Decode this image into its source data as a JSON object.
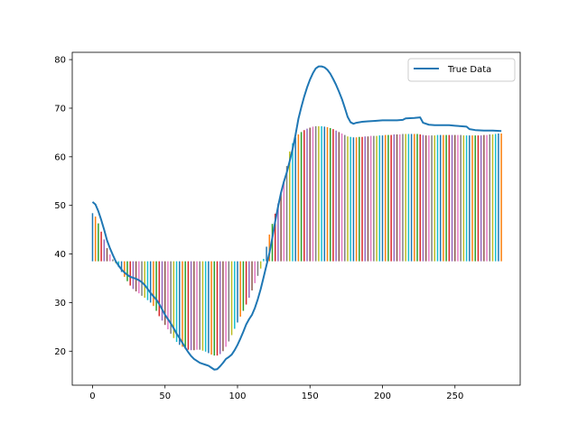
{
  "chart_data": {
    "type": "line",
    "title": "",
    "xlabel": "",
    "ylabel": "",
    "xlim": [
      -14,
      295
    ],
    "ylim": [
      13,
      81.5
    ],
    "xticks": [
      0,
      50,
      100,
      150,
      200,
      250
    ],
    "yticks": [
      20,
      30,
      40,
      50,
      60,
      70,
      80
    ],
    "grid": false,
    "legend": {
      "placement": "top-right",
      "label": "True Data"
    },
    "series": [
      {
        "name": "True Data",
        "color": "#1f77b4",
        "points": [
          [
            0,
            50.7
          ],
          [
            2,
            50.2
          ],
          [
            4,
            48.8
          ],
          [
            6,
            47.0
          ],
          [
            8,
            45.0
          ],
          [
            10,
            42.8
          ],
          [
            12,
            41.2
          ],
          [
            14,
            39.8
          ],
          [
            16,
            38.5
          ],
          [
            18,
            37.6
          ],
          [
            20,
            36.8
          ],
          [
            22,
            36.2
          ],
          [
            24,
            35.7
          ],
          [
            26,
            35.3
          ],
          [
            28,
            35.1
          ],
          [
            30,
            34.9
          ],
          [
            32,
            34.6
          ],
          [
            34,
            34.2
          ],
          [
            36,
            33.6
          ],
          [
            38,
            32.8
          ],
          [
            40,
            32.0
          ],
          [
            42,
            31.3
          ],
          [
            44,
            30.6
          ],
          [
            46,
            29.7
          ],
          [
            48,
            28.6
          ],
          [
            50,
            27.5
          ],
          [
            52,
            26.6
          ],
          [
            54,
            25.7
          ],
          [
            56,
            24.7
          ],
          [
            58,
            23.6
          ],
          [
            60,
            22.7
          ],
          [
            62,
            21.7
          ],
          [
            64,
            20.7
          ],
          [
            66,
            19.8
          ],
          [
            68,
            19.0
          ],
          [
            70,
            18.4
          ],
          [
            72,
            18.0
          ],
          [
            74,
            17.6
          ],
          [
            76,
            17.4
          ],
          [
            78,
            17.2
          ],
          [
            80,
            17.0
          ],
          [
            82,
            16.6
          ],
          [
            84,
            16.2
          ],
          [
            86,
            16.3
          ],
          [
            88,
            16.9
          ],
          [
            90,
            17.6
          ],
          [
            92,
            18.4
          ],
          [
            94,
            18.8
          ],
          [
            96,
            19.3
          ],
          [
            98,
            20.2
          ],
          [
            100,
            21.3
          ],
          [
            102,
            22.6
          ],
          [
            104,
            24.0
          ],
          [
            106,
            25.5
          ],
          [
            108,
            26.6
          ],
          [
            110,
            27.5
          ],
          [
            112,
            28.9
          ],
          [
            114,
            30.7
          ],
          [
            116,
            32.8
          ],
          [
            118,
            35.2
          ],
          [
            120,
            37.7
          ],
          [
            122,
            40.2
          ],
          [
            124,
            43.3
          ],
          [
            126,
            46.7
          ],
          [
            128,
            49.8
          ],
          [
            130,
            52.6
          ],
          [
            132,
            54.9
          ],
          [
            134,
            56.8
          ],
          [
            136,
            59.1
          ],
          [
            138,
            61.6
          ],
          [
            140,
            64.5
          ],
          [
            142,
            67.8
          ],
          [
            144,
            70.2
          ],
          [
            146,
            72.4
          ],
          [
            148,
            74.3
          ],
          [
            150,
            75.9
          ],
          [
            152,
            77.2
          ],
          [
            154,
            78.2
          ],
          [
            156,
            78.6
          ],
          [
            158,
            78.6
          ],
          [
            160,
            78.4
          ],
          [
            162,
            77.9
          ],
          [
            164,
            77.1
          ],
          [
            166,
            76.0
          ],
          [
            168,
            74.8
          ],
          [
            170,
            73.4
          ],
          [
            172,
            71.9
          ],
          [
            174,
            70.1
          ],
          [
            176,
            68.2
          ],
          [
            178,
            67.1
          ],
          [
            180,
            66.8
          ],
          [
            182,
            67.0
          ],
          [
            186,
            67.2
          ],
          [
            190,
            67.3
          ],
          [
            195,
            67.4
          ],
          [
            200,
            67.5
          ],
          [
            205,
            67.5
          ],
          [
            210,
            67.5
          ],
          [
            214,
            67.6
          ],
          [
            216,
            67.9
          ],
          [
            222,
            68.0
          ],
          [
            226,
            68.1
          ],
          [
            228,
            67.0
          ],
          [
            232,
            66.6
          ],
          [
            236,
            66.5
          ],
          [
            240,
            66.5
          ],
          [
            246,
            66.5
          ],
          [
            250,
            66.4
          ],
          [
            254,
            66.3
          ],
          [
            258,
            66.2
          ],
          [
            260,
            65.7
          ],
          [
            264,
            65.5
          ],
          [
            270,
            65.4
          ],
          [
            276,
            65.4
          ],
          [
            282,
            65.3
          ]
        ]
      }
    ],
    "prediction_bars": {
      "baseline": 38.5,
      "palette": [
        "#1f77b4",
        "#ff7f0e",
        "#2ca02c",
        "#d62728",
        "#9467bd",
        "#8c564b",
        "#e377c2",
        "#7f7f7f",
        "#bcbd22",
        "#17becf"
      ],
      "x": [
        0,
        2,
        4,
        6,
        8,
        10,
        12,
        14,
        16,
        18,
        20,
        22,
        24,
        26,
        28,
        30,
        32,
        34,
        36,
        38,
        40,
        42,
        44,
        46,
        48,
        50,
        52,
        54,
        56,
        58,
        60,
        62,
        64,
        66,
        68,
        70,
        72,
        74,
        76,
        78,
        80,
        82,
        84,
        86,
        88,
        90,
        92,
        94,
        96,
        98,
        100,
        102,
        104,
        106,
        108,
        110,
        112,
        114,
        116,
        118,
        120,
        122,
        124,
        126,
        128,
        130,
        132,
        134,
        136,
        138,
        140,
        142,
        144,
        146,
        148,
        150,
        152,
        154,
        156,
        158,
        160,
        162,
        164,
        166,
        168,
        170,
        172,
        174,
        176,
        178,
        180,
        182,
        184,
        186,
        188,
        190,
        192,
        194,
        196,
        198,
        200,
        202,
        204,
        206,
        208,
        210,
        212,
        214,
        216,
        218,
        220,
        222,
        224,
        226,
        228,
        230,
        232,
        234,
        236,
        238,
        240,
        242,
        244,
        246,
        248,
        250,
        252,
        254,
        256,
        258,
        260,
        262,
        264,
        266,
        268,
        270,
        272,
        274,
        276,
        278,
        280,
        282
      ],
      "tops": [
        48.4,
        47.7,
        46.3,
        44.6,
        43.0,
        41.2,
        39.9,
        38.9,
        38.1,
        37.3,
        36.3,
        35.3,
        34.4,
        33.5,
        32.8,
        32.3,
        31.9,
        31.4,
        31.0,
        30.5,
        30.0,
        29.3,
        28.3,
        27.2,
        26.3,
        25.4,
        24.5,
        23.6,
        22.7,
        21.9,
        21.3,
        20.9,
        20.5,
        20.3,
        20.2,
        20.2,
        20.3,
        20.3,
        20.1,
        19.9,
        19.6,
        19.3,
        19.1,
        19.1,
        19.4,
        20.0,
        20.9,
        22.0,
        23.3,
        24.6,
        25.9,
        27.1,
        28.3,
        29.6,
        31.0,
        32.5,
        34.0,
        35.5,
        37.0,
        39.0,
        41.5,
        44.0,
        46.2,
        48.3,
        50.4,
        52.7,
        55.1,
        58.1,
        61.1,
        62.8,
        64.0,
        64.6,
        65.1,
        65.5,
        65.8,
        66.0,
        66.2,
        66.3,
        66.3,
        66.3,
        66.2,
        66.1,
        65.9,
        65.7,
        65.4,
        65.1,
        64.8,
        64.5,
        64.2,
        64.1,
        64.0,
        64.0,
        64.1,
        64.1,
        64.2,
        64.2,
        64.3,
        64.3,
        64.3,
        64.4,
        64.4,
        64.5,
        64.5,
        64.5,
        64.6,
        64.6,
        64.6,
        64.7,
        64.7,
        64.7,
        64.7,
        64.7,
        64.7,
        64.6,
        64.5,
        64.4,
        64.4,
        64.4,
        64.4,
        64.5,
        64.5,
        64.5,
        64.5,
        64.5,
        64.5,
        64.5,
        64.5,
        64.5,
        64.4,
        64.4,
        64.4,
        64.4,
        64.4,
        64.4,
        64.4,
        64.5,
        64.5,
        64.6,
        64.6,
        64.7,
        64.8,
        64.8
      ]
    }
  }
}
